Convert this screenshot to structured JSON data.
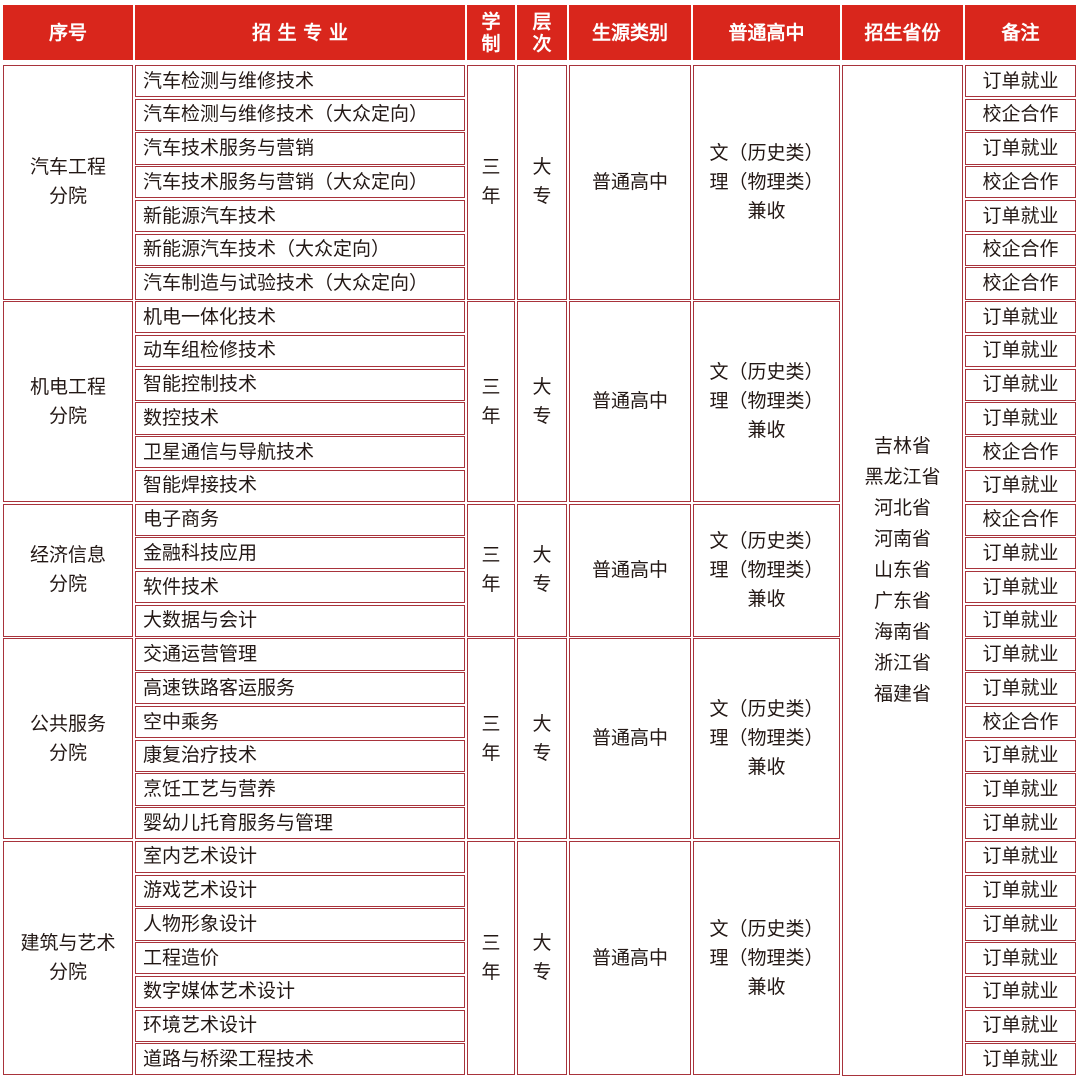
{
  "colors": {
    "header_bg": "#d9261c",
    "border": "#a8333b",
    "text": "#231815"
  },
  "headers": [
    "序号",
    "招 生 专 业",
    "学\n制",
    "层\n次",
    "生源类别",
    "普通高中",
    "招生省份",
    "备注"
  ],
  "provinces": "吉林省\n黑龙江省\n河北省\n河南省\n山东省\n广东省\n海南省\n浙江省\n福建省",
  "groups": [
    {
      "name": "汽车工程\n分院",
      "duration": "三\n年",
      "level": "大\n专",
      "source": "普通高中",
      "subjects": "文（历史类）\n理（物理类）\n兼收",
      "majors": [
        {
          "name": "汽车检测与维修技术",
          "note": "订单就业"
        },
        {
          "name": "汽车检测与维修技术（大众定向）",
          "note": "校企合作"
        },
        {
          "name": "汽车技术服务与营销",
          "note": "订单就业"
        },
        {
          "name": "汽车技术服务与营销（大众定向）",
          "note": "校企合作"
        },
        {
          "name": "新能源汽车技术",
          "note": "订单就业"
        },
        {
          "name": "新能源汽车技术（大众定向）",
          "note": "校企合作"
        },
        {
          "name": "汽车制造与试验技术（大众定向）",
          "note": "校企合作"
        }
      ]
    },
    {
      "name": "机电工程\n分院",
      "duration": "三\n年",
      "level": "大\n专",
      "source": "普通高中",
      "subjects": "文（历史类）\n理（物理类）\n兼收",
      "majors": [
        {
          "name": "机电一体化技术",
          "note": "订单就业"
        },
        {
          "name": "动车组检修技术",
          "note": "订单就业"
        },
        {
          "name": "智能控制技术",
          "note": "订单就业"
        },
        {
          "name": "数控技术",
          "note": "订单就业"
        },
        {
          "name": "卫星通信与导航技术",
          "note": "校企合作"
        },
        {
          "name": "智能焊接技术",
          "note": "订单就业"
        }
      ]
    },
    {
      "name": "经济信息\n分院",
      "duration": "三\n年",
      "level": "大\n专",
      "source": "普通高中",
      "subjects": "文（历史类）\n理（物理类）\n兼收",
      "majors": [
        {
          "name": "电子商务",
          "note": "校企合作"
        },
        {
          "name": "金融科技应用",
          "note": "订单就业"
        },
        {
          "name": "软件技术",
          "note": "订单就业"
        },
        {
          "name": "大数据与会计",
          "note": "订单就业"
        }
      ]
    },
    {
      "name": "公共服务\n分院",
      "duration": "三\n年",
      "level": "大\n专",
      "source": "普通高中",
      "subjects": "文（历史类）\n理（物理类）\n兼收",
      "majors": [
        {
          "name": "交通运营管理",
          "note": "订单就业"
        },
        {
          "name": "高速铁路客运服务",
          "note": "订单就业"
        },
        {
          "name": "空中乘务",
          "note": "校企合作"
        },
        {
          "name": "康复治疗技术",
          "note": "订单就业"
        },
        {
          "name": "烹饪工艺与营养",
          "note": "订单就业"
        },
        {
          "name": "婴幼儿托育服务与管理",
          "note": "订单就业"
        }
      ]
    },
    {
      "name": "建筑与艺术\n分院",
      "duration": "三\n年",
      "level": "大\n专",
      "source": "普通高中",
      "subjects": "文（历史类）\n理（物理类）\n兼收",
      "majors": [
        {
          "name": "室内艺术设计",
          "note": "订单就业"
        },
        {
          "name": "游戏艺术设计",
          "note": "订单就业"
        },
        {
          "name": "人物形象设计",
          "note": "订单就业"
        },
        {
          "name": "工程造价",
          "note": "订单就业"
        },
        {
          "name": "数字媒体艺术设计",
          "note": "订单就业"
        },
        {
          "name": "环境艺术设计",
          "note": "订单就业"
        },
        {
          "name": "道路与桥梁工程技术",
          "note": "订单就业"
        }
      ]
    }
  ]
}
